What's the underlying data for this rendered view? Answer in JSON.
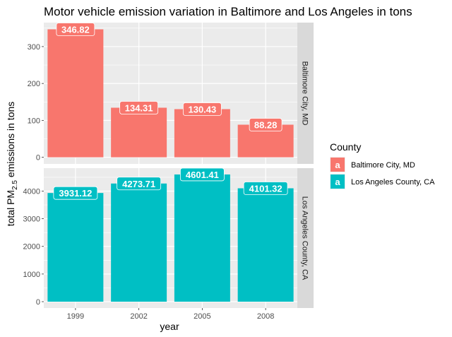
{
  "chart_data": {
    "type": "bar",
    "title": "Motor vehicle emission variation in Baltimore and Los Angeles in tons",
    "xlabel": "year",
    "ylabel_main": "total PM",
    "ylabel_sub": "2.5",
    "ylabel_rest": " emissions in tons",
    "categories": [
      "1999",
      "2002",
      "2005",
      "2008"
    ],
    "panels": [
      {
        "name": "Baltimore City, MD",
        "color": "#F8766D",
        "values": [
          346.82,
          134.31,
          130.43,
          88.28
        ],
        "labels": [
          "346.82",
          "134.31",
          "130.43",
          "88.28"
        ],
        "ylim": [
          -18,
          365
        ],
        "yticks": [
          0,
          100,
          200,
          300
        ],
        "ytick_labels": [
          "0",
          "100",
          "200",
          "300"
        ]
      },
      {
        "name": "Los Angeles County, CA",
        "color": "#00BFC4",
        "values": [
          3931.12,
          4273.71,
          4601.41,
          4101.32
        ],
        "labels": [
          "3931.12",
          "4273.71",
          "4601.41",
          "4101.32"
        ],
        "ylim": [
          -230,
          4830
        ],
        "yticks": [
          0,
          1000,
          2000,
          3000,
          4000
        ],
        "ytick_labels": [
          "0",
          "1000",
          "2000",
          "3000",
          "4000"
        ]
      }
    ],
    "legend": {
      "title": "County",
      "key_glyph": "a",
      "placement": "right",
      "items": [
        {
          "label": "Baltimore City, MD",
          "color": "#F8766D"
        },
        {
          "label": "Los Angeles County, CA",
          "color": "#00BFC4"
        }
      ]
    },
    "grid": true,
    "panel_background": "#EBEBEB",
    "strip_background": "#D9D9D9"
  }
}
